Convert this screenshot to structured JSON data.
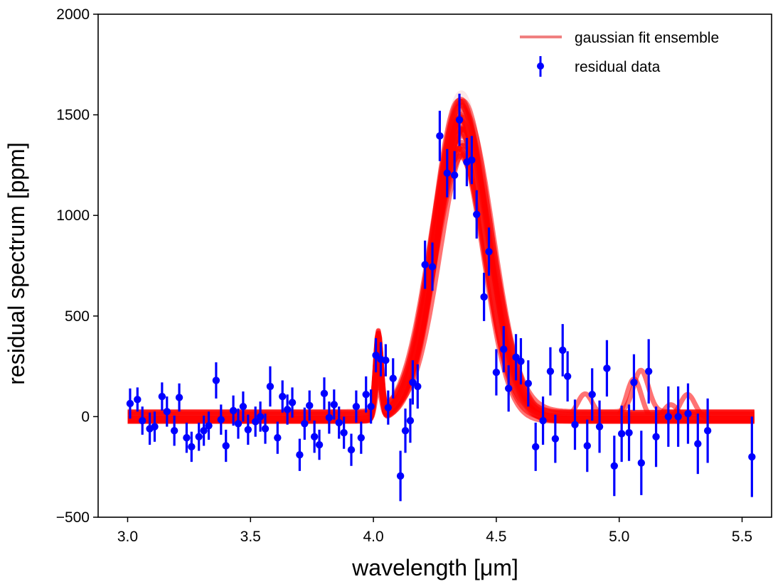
{
  "chart_data": {
    "type": "line",
    "title": "",
    "xlabel": "wavelength [μm]",
    "ylabel": "residual spectrum [ppm]",
    "xlim": [
      2.88,
      5.62
    ],
    "ylim": [
      -500,
      2000
    ],
    "xticks": [
      3.0,
      3.5,
      4.0,
      4.5,
      5.0,
      5.5
    ],
    "xtick_labels": [
      "3.0",
      "3.5",
      "4.0",
      "4.5",
      "5.0",
      "5.5"
    ],
    "yticks": [
      -500,
      0,
      500,
      1000,
      1500,
      2000
    ],
    "ytick_labels": [
      "−500",
      "0",
      "500",
      "1000",
      "1500",
      "2000"
    ],
    "grid": false,
    "legend_position": "top-right",
    "legend": [
      {
        "label": "gaussian fit ensemble",
        "kind": "line",
        "color": "#f08080"
      },
      {
        "label": "residual data",
        "kind": "errorbar-marker",
        "color": "#0000ff"
      }
    ],
    "colors": {
      "fit": "#ff0000",
      "fit_light": "#f08080",
      "data": "#0000ff"
    },
    "fit_ensemble": {
      "x_range": [
        3.0,
        5.55
      ],
      "gaussian_center": 4.36,
      "gaussian_sigma": 0.11,
      "amplitude_range": [
        1290,
        1600
      ],
      "baseline_range": [
        -25,
        25
      ],
      "spike": {
        "x": 4.02,
        "peak_range": [
          150,
          420
        ]
      },
      "n_members": 40
    },
    "series": [
      {
        "name": "residual data",
        "points": [
          {
            "x": 3.01,
            "y": 65,
            "err": 75
          },
          {
            "x": 3.04,
            "y": 85,
            "err": 60
          },
          {
            "x": 3.06,
            "y": -20,
            "err": 70
          },
          {
            "x": 3.09,
            "y": -60,
            "err": 80
          },
          {
            "x": 3.11,
            "y": -50,
            "err": 75
          },
          {
            "x": 3.14,
            "y": 100,
            "err": 70
          },
          {
            "x": 3.16,
            "y": 25,
            "err": 75
          },
          {
            "x": 3.19,
            "y": -70,
            "err": 75
          },
          {
            "x": 3.21,
            "y": 95,
            "err": 70
          },
          {
            "x": 3.24,
            "y": -105,
            "err": 75
          },
          {
            "x": 3.26,
            "y": -150,
            "err": 75
          },
          {
            "x": 3.29,
            "y": -100,
            "err": 70
          },
          {
            "x": 3.31,
            "y": -70,
            "err": 75
          },
          {
            "x": 3.33,
            "y": -45,
            "err": 70
          },
          {
            "x": 3.36,
            "y": 180,
            "err": 90
          },
          {
            "x": 3.38,
            "y": -15,
            "err": 75
          },
          {
            "x": 3.4,
            "y": -145,
            "err": 80
          },
          {
            "x": 3.43,
            "y": 30,
            "err": 75
          },
          {
            "x": 3.45,
            "y": -35,
            "err": 75
          },
          {
            "x": 3.47,
            "y": 50,
            "err": 75
          },
          {
            "x": 3.49,
            "y": -65,
            "err": 75
          },
          {
            "x": 3.52,
            "y": -25,
            "err": 75
          },
          {
            "x": 3.54,
            "y": 0,
            "err": 75
          },
          {
            "x": 3.56,
            "y": -60,
            "err": 75
          },
          {
            "x": 3.58,
            "y": 150,
            "err": 100
          },
          {
            "x": 3.61,
            "y": -105,
            "err": 80
          },
          {
            "x": 3.63,
            "y": 100,
            "err": 80
          },
          {
            "x": 3.65,
            "y": 35,
            "err": 75
          },
          {
            "x": 3.67,
            "y": 70,
            "err": 75
          },
          {
            "x": 3.7,
            "y": -190,
            "err": 80
          },
          {
            "x": 3.72,
            "y": -35,
            "err": 80
          },
          {
            "x": 3.74,
            "y": 55,
            "err": 75
          },
          {
            "x": 3.76,
            "y": -100,
            "err": 80
          },
          {
            "x": 3.78,
            "y": -140,
            "err": 75
          },
          {
            "x": 3.8,
            "y": 115,
            "err": 80
          },
          {
            "x": 3.82,
            "y": -5,
            "err": 80
          },
          {
            "x": 3.84,
            "y": 60,
            "err": 75
          },
          {
            "x": 3.86,
            "y": -30,
            "err": 80
          },
          {
            "x": 3.88,
            "y": -80,
            "err": 80
          },
          {
            "x": 3.91,
            "y": -165,
            "err": 80
          },
          {
            "x": 3.93,
            "y": 50,
            "err": 80
          },
          {
            "x": 3.95,
            "y": -105,
            "err": 80
          },
          {
            "x": 3.97,
            "y": 110,
            "err": 90
          },
          {
            "x": 3.99,
            "y": 50,
            "err": 85
          },
          {
            "x": 4.01,
            "y": 305,
            "err": 85
          },
          {
            "x": 4.03,
            "y": 285,
            "err": 85
          },
          {
            "x": 4.05,
            "y": 280,
            "err": 80
          },
          {
            "x": 4.06,
            "y": 45,
            "err": 85
          },
          {
            "x": 4.08,
            "y": 190,
            "err": 100
          },
          {
            "x": 4.11,
            "y": -295,
            "err": 125
          },
          {
            "x": 4.13,
            "y": -70,
            "err": 110
          },
          {
            "x": 4.15,
            "y": -20,
            "err": 110
          },
          {
            "x": 4.16,
            "y": 170,
            "err": 110
          },
          {
            "x": 4.18,
            "y": 150,
            "err": 110
          },
          {
            "x": 4.21,
            "y": 755,
            "err": 120
          },
          {
            "x": 4.24,
            "y": 745,
            "err": 120
          },
          {
            "x": 4.27,
            "y": 1395,
            "err": 125
          },
          {
            "x": 4.3,
            "y": 1210,
            "err": 120
          },
          {
            "x": 4.33,
            "y": 1200,
            "err": 120
          },
          {
            "x": 4.35,
            "y": 1475,
            "err": 130
          },
          {
            "x": 4.38,
            "y": 1265,
            "err": 120
          },
          {
            "x": 4.4,
            "y": 1275,
            "err": 120
          },
          {
            "x": 4.42,
            "y": 1005,
            "err": 120
          },
          {
            "x": 4.45,
            "y": 595,
            "err": 120
          },
          {
            "x": 4.47,
            "y": 820,
            "err": 120
          },
          {
            "x": 4.5,
            "y": 220,
            "err": 115
          },
          {
            "x": 4.53,
            "y": 335,
            "err": 115
          },
          {
            "x": 4.55,
            "y": 140,
            "err": 115
          },
          {
            "x": 4.58,
            "y": 295,
            "err": 115
          },
          {
            "x": 4.6,
            "y": 275,
            "err": 115
          },
          {
            "x": 4.63,
            "y": 165,
            "err": 115
          },
          {
            "x": 4.66,
            "y": -150,
            "err": 120
          },
          {
            "x": 4.69,
            "y": -20,
            "err": 120
          },
          {
            "x": 4.72,
            "y": 225,
            "err": 120
          },
          {
            "x": 4.74,
            "y": -110,
            "err": 120
          },
          {
            "x": 4.77,
            "y": 330,
            "err": 130
          },
          {
            "x": 4.79,
            "y": 200,
            "err": 125
          },
          {
            "x": 4.82,
            "y": -40,
            "err": 125
          },
          {
            "x": 4.87,
            "y": -145,
            "err": 130
          },
          {
            "x": 4.89,
            "y": 110,
            "err": 130
          },
          {
            "x": 4.92,
            "y": -50,
            "err": 130
          },
          {
            "x": 4.95,
            "y": 240,
            "err": 140
          },
          {
            "x": 4.98,
            "y": -245,
            "err": 150
          },
          {
            "x": 5.01,
            "y": -85,
            "err": 140
          },
          {
            "x": 5.04,
            "y": -80,
            "err": 140
          },
          {
            "x": 5.06,
            "y": 170,
            "err": 140
          },
          {
            "x": 5.09,
            "y": -230,
            "err": 160
          },
          {
            "x": 5.12,
            "y": 225,
            "err": 160
          },
          {
            "x": 5.15,
            "y": -100,
            "err": 150
          },
          {
            "x": 5.2,
            "y": 0,
            "err": 150
          },
          {
            "x": 5.24,
            "y": 0,
            "err": 150
          },
          {
            "x": 5.28,
            "y": 15,
            "err": 150
          },
          {
            "x": 5.32,
            "y": -135,
            "err": 150
          },
          {
            "x": 5.36,
            "y": -70,
            "err": 160
          },
          {
            "x": 5.54,
            "y": -200,
            "err": 200
          }
        ]
      }
    ]
  }
}
